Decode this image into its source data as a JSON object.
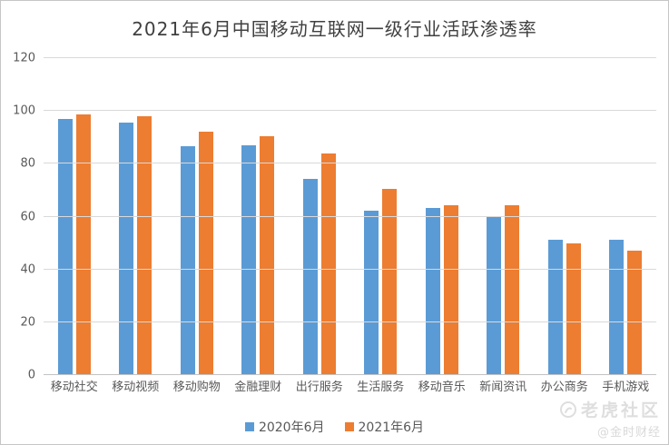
{
  "title": "2021年6月中国移动互联网一级行业活跃渗透率",
  "watermarks": {
    "community": "老虎社区",
    "author": "@金时财经"
  },
  "colors": {
    "series_2020": "#5B9BD5",
    "series_2021": "#ED7D31",
    "gridline": "#D9D9D9",
    "axis_text": "#595959",
    "title_text": "#404040",
    "watermark": "#DEDEDE"
  },
  "chart_data": {
    "type": "bar",
    "title": "2021年6月中国移动互联网一级行业活跃渗透率",
    "categories": [
      "移动社交",
      "移动视频",
      "移动购物",
      "金融理财",
      "出行服务",
      "生活服务",
      "移动音乐",
      "新闻资讯",
      "办公商务",
      "手机游戏"
    ],
    "series": [
      {
        "name": "2020年6月",
        "color": "#5B9BD5",
        "values": [
          97.0,
          95.6,
          86.8,
          87.0,
          74.3,
          62.2,
          63.3,
          60.1,
          51.2,
          51.2
        ]
      },
      {
        "name": "2021年6月",
        "color": "#ED7D31",
        "values": [
          98.7,
          97.9,
          92.3,
          90.6,
          83.9,
          70.4,
          64.4,
          64.3,
          49.8,
          47.2
        ]
      }
    ],
    "xlabel": "",
    "ylabel": "",
    "ylim": [
      0,
      120
    ],
    "yticks": [
      0,
      20,
      40,
      60,
      80,
      100,
      120
    ],
    "grid": true,
    "legend_position": "bottom"
  }
}
